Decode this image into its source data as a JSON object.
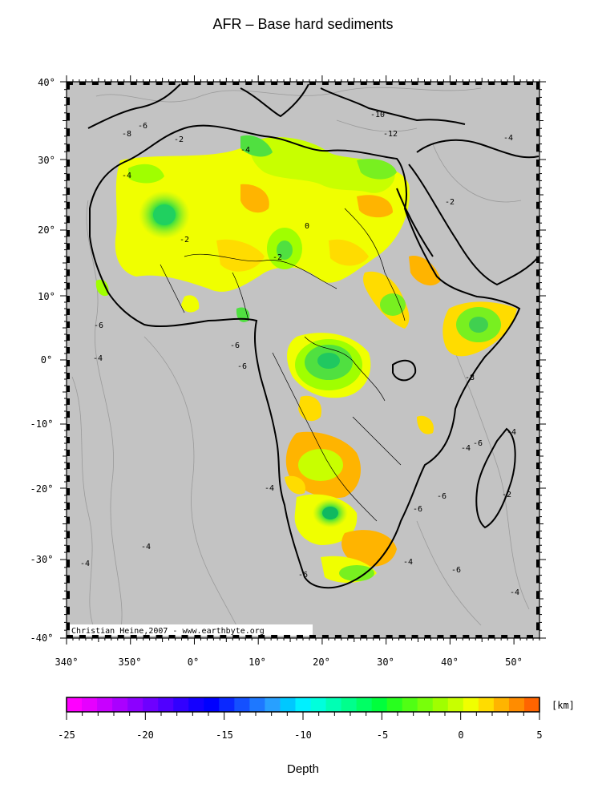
{
  "title": "AFR – Base hard sediments",
  "credit": "Christian Heine,2007 - www.earthbyte.org",
  "map": {
    "lat_labels": [
      "40°",
      "30°",
      "20°",
      "10°",
      "0°",
      "-10°",
      "-20°",
      "-30°",
      "-40°"
    ],
    "lon_labels": [
      "340°",
      "350°",
      "0°",
      "10°",
      "20°",
      "30°",
      "40°",
      "50°"
    ],
    "background_color": "#c3c3c3",
    "contour_labels": [
      "-2",
      "-4",
      "-6",
      "-8",
      "-10",
      "-12",
      "0"
    ]
  },
  "colorbar": {
    "unit": "[km]",
    "label": "Depth",
    "ticks": [
      "-25",
      "-20",
      "-15",
      "-10",
      "-5",
      "0",
      "5"
    ],
    "colors": [
      "#ff00ff",
      "#e600ff",
      "#c800ff",
      "#aa00ff",
      "#8c00ff",
      "#6e00ff",
      "#5000ff",
      "#3200ff",
      "#1400ff",
      "#0000ff",
      "#0a28ff",
      "#1450ff",
      "#1e78ff",
      "#28a0ff",
      "#00c8ff",
      "#00f0ff",
      "#00ffdc",
      "#00ffb4",
      "#00ff8c",
      "#00ff64",
      "#00ff3c",
      "#28ff1e",
      "#50ff14",
      "#78ff0a",
      "#a0ff00",
      "#c8ff00",
      "#f0ff00",
      "#ffdc00",
      "#ffb400",
      "#ff8c00",
      "#ff6400"
    ]
  }
}
